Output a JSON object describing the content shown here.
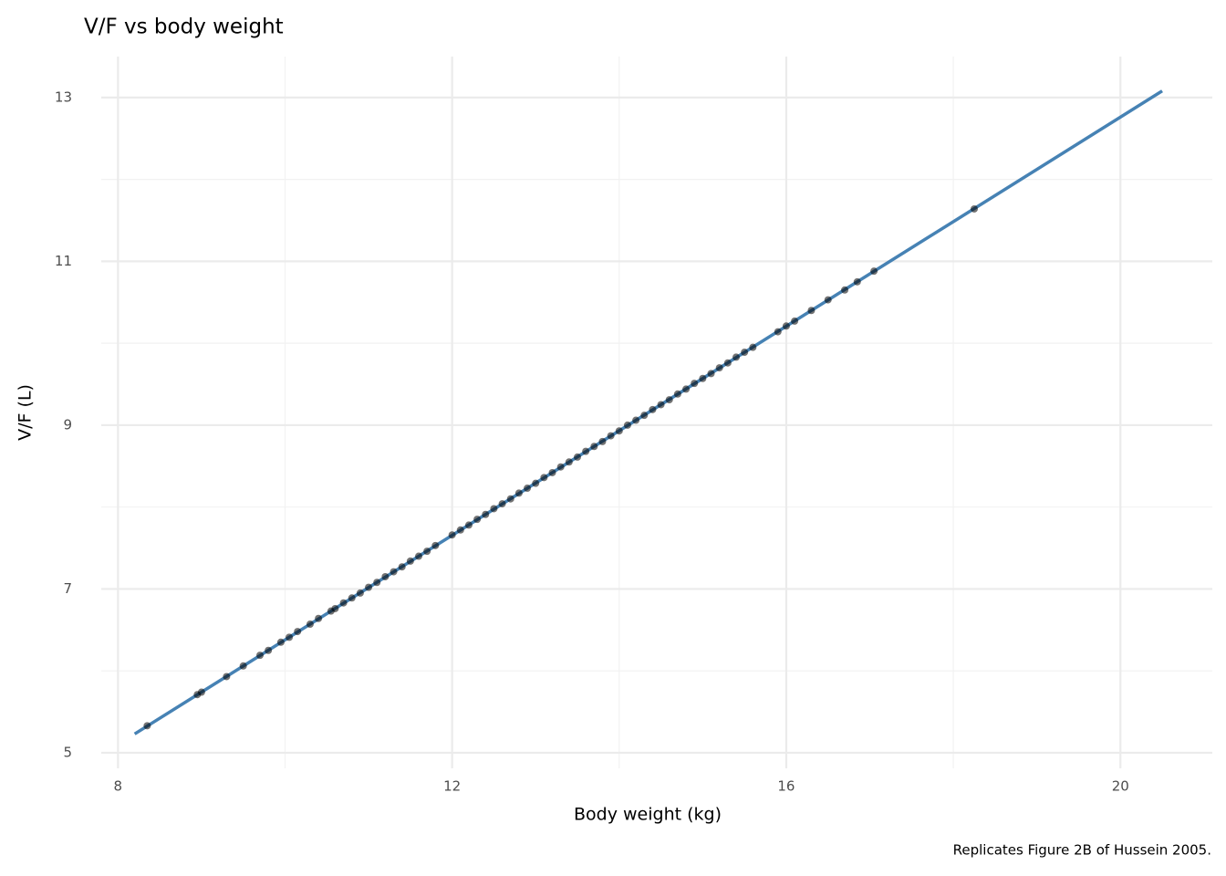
{
  "chart_data": {
    "type": "scatter",
    "title": "V/F vs body weight",
    "xlabel": "Body weight (kg)",
    "ylabel": "V/F (L)",
    "caption": "Replicates Figure 2B of Hussein 2005.",
    "xlim": [
      7.8,
      21.1
    ],
    "ylim": [
      4.81,
      13.5
    ],
    "xticks": [
      8,
      12,
      16,
      20
    ],
    "yticks": [
      5,
      7,
      9,
      11,
      13
    ],
    "xminor": [
      10,
      14,
      18
    ],
    "yminor": [
      6,
      8,
      10,
      12
    ],
    "grid": true,
    "points": {
      "color": "#000000",
      "x": [
        8.35,
        8.95,
        9.0,
        9.3,
        9.5,
        9.7,
        9.8,
        9.95,
        10.05,
        10.15,
        10.3,
        10.4,
        10.55,
        10.6,
        10.7,
        10.8,
        10.9,
        11.0,
        11.1,
        11.2,
        11.3,
        11.4,
        11.5,
        11.6,
        11.7,
        11.8,
        12.0,
        12.1,
        12.2,
        12.3,
        12.4,
        12.5,
        12.6,
        12.7,
        12.8,
        12.9,
        13.0,
        13.1,
        13.2,
        13.3,
        13.4,
        13.5,
        13.6,
        13.7,
        13.8,
        13.9,
        14.0,
        14.1,
        14.2,
        14.3,
        14.4,
        14.5,
        14.6,
        14.7,
        14.8,
        14.9,
        15.0,
        15.1,
        15.2,
        15.3,
        15.4,
        15.5,
        15.6,
        15.9,
        16.0,
        16.1,
        16.3,
        16.5,
        16.7,
        16.85,
        17.05,
        18.25
      ],
      "y": [
        5.33,
        5.71,
        5.74,
        5.93,
        6.06,
        6.19,
        6.25,
        6.35,
        6.41,
        6.48,
        6.57,
        6.64,
        6.73,
        6.76,
        6.83,
        6.89,
        6.95,
        7.02,
        7.08,
        7.15,
        7.21,
        7.27,
        7.34,
        7.4,
        7.46,
        7.53,
        7.66,
        7.72,
        7.78,
        7.85,
        7.91,
        7.98,
        8.04,
        8.1,
        8.17,
        8.23,
        8.29,
        8.36,
        8.42,
        8.49,
        8.55,
        8.61,
        8.68,
        8.74,
        8.8,
        8.87,
        8.93,
        9.0,
        9.06,
        9.12,
        9.19,
        9.25,
        9.31,
        9.38,
        9.44,
        9.51,
        9.57,
        9.63,
        9.7,
        9.76,
        9.83,
        9.89,
        9.95,
        10.14,
        10.21,
        10.27,
        10.4,
        10.53,
        10.65,
        10.75,
        10.88,
        11.64
      ]
    },
    "line": {
      "color": "#4682b4",
      "x": [
        8.2,
        20.5
      ],
      "y": [
        5.23,
        13.08
      ]
    }
  }
}
